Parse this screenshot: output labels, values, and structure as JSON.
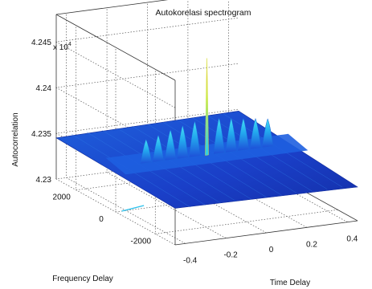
{
  "chart_data": {
    "type": "surface",
    "title": "Autokorelasi spectrogram",
    "xlabel": "Time Delay",
    "ylabel": "Frequency Delay",
    "zlabel": "Autocorrelation",
    "z_exponent_label": "x 10",
    "z_exponent_power": "4",
    "x_ticks": [
      "-0.4",
      "-0.2",
      "0",
      "0.2",
      "0.4"
    ],
    "x_tick_values": [
      -0.4,
      -0.2,
      0,
      0.2,
      0.4
    ],
    "y_ticks": [
      "-2000",
      "0",
      "2000"
    ],
    "y_tick_values": [
      -2000,
      0,
      2000
    ],
    "z_ticks": [
      "4.23",
      "4.235",
      "4.24",
      "4.245"
    ],
    "z_tick_values": [
      4.23,
      4.235,
      4.24,
      4.245
    ],
    "xlim": [
      -0.45,
      0.45
    ],
    "ylim": [
      -3000,
      3000
    ],
    "zlim": [
      4.23,
      4.248
    ],
    "grid": true,
    "colormap": "jet",
    "surface": {
      "base_level": 4.2345,
      "ridge_frequency_delay": 0,
      "peaks": [
        {
          "time_delay": -0.3,
          "value": 4.2375
        },
        {
          "time_delay": -0.24,
          "value": 4.2378
        },
        {
          "time_delay": -0.18,
          "value": 4.2382
        },
        {
          "time_delay": -0.12,
          "value": 4.2385
        },
        {
          "time_delay": -0.06,
          "value": 4.2388
        },
        {
          "time_delay": 0.0,
          "value": 4.2455
        },
        {
          "time_delay": 0.06,
          "value": 4.2388
        },
        {
          "time_delay": 0.12,
          "value": 4.2386
        },
        {
          "time_delay": 0.18,
          "value": 4.2384
        },
        {
          "time_delay": 0.24,
          "value": 4.2382
        },
        {
          "time_delay": 0.3,
          "value": 4.238
        }
      ]
    }
  },
  "colors": {
    "low": "#1a2fbf",
    "mid": "#1f8fe6",
    "high": "#22d7f0",
    "peak": "#f0f040",
    "grid": "#555555"
  }
}
